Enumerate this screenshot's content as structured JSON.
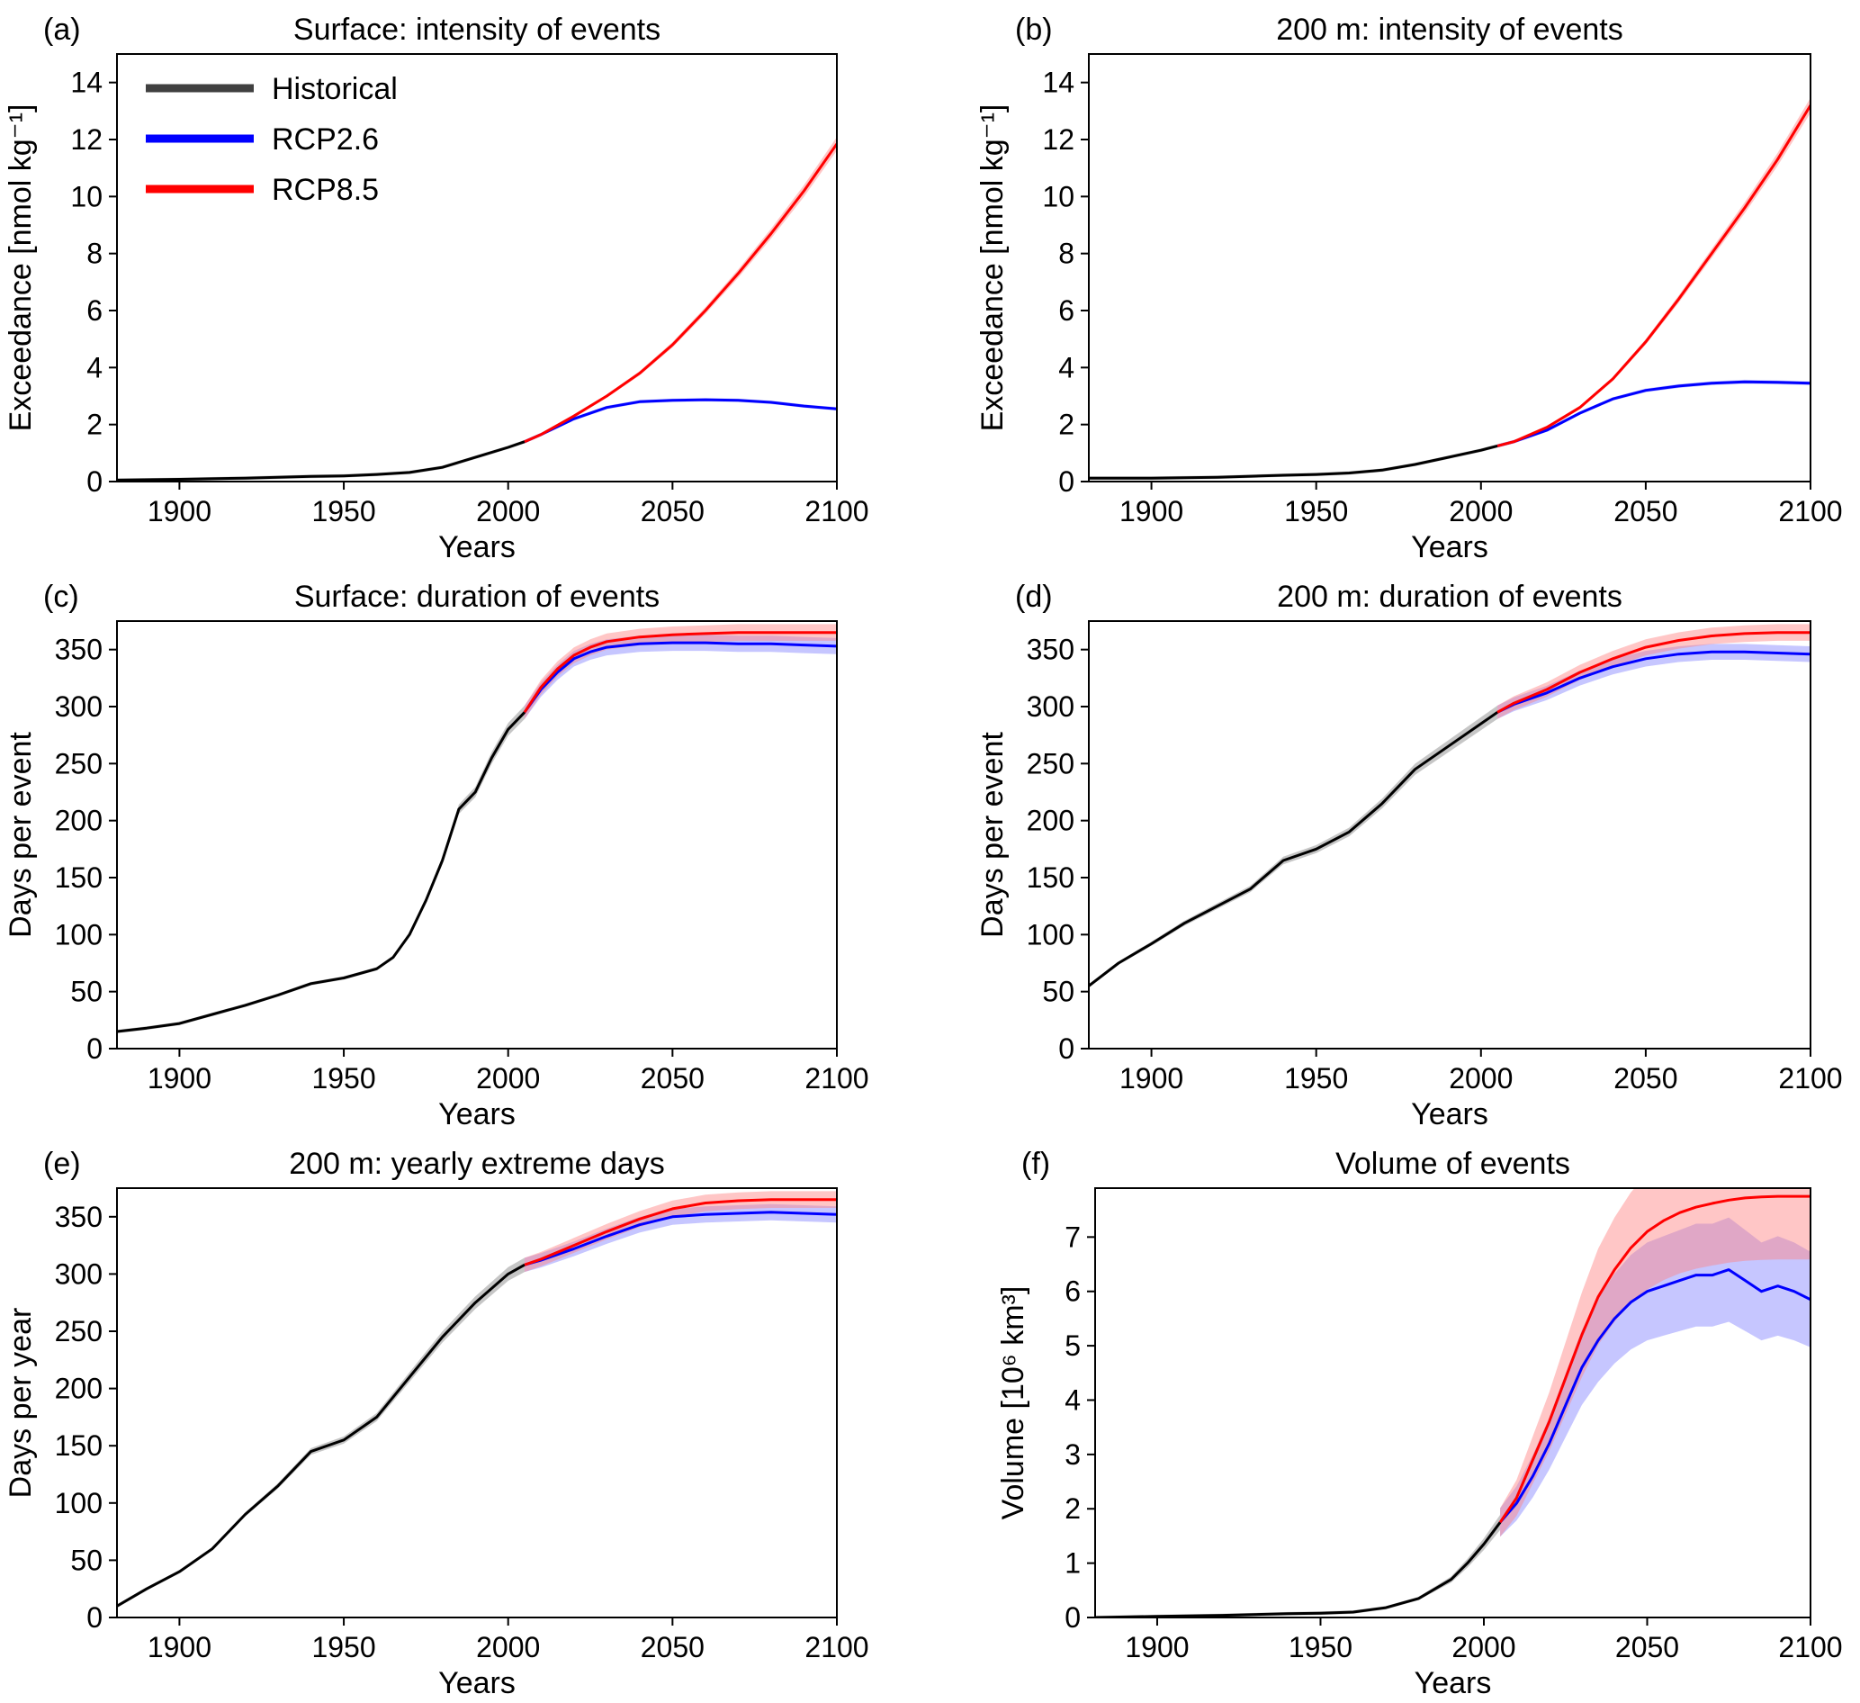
{
  "chart_data": [
    {
      "panel": "(a)",
      "type": "line",
      "title": "Surface: intensity of events",
      "xlabel": "Years",
      "ylabel": "Exceedance [nmol kg⁻¹]",
      "xlim": [
        1881,
        2100
      ],
      "ylim": [
        0,
        15
      ],
      "xticks": [
        1900,
        1950,
        2000,
        2050,
        2100
      ],
      "yticks": [
        0,
        2,
        4,
        6,
        8,
        10,
        12,
        14
      ],
      "legend": {
        "position": "top-left",
        "entries": [
          "Historical",
          "RCP2.6",
          "RCP8.5"
        ]
      },
      "series": [
        {
          "name": "Historical",
          "color": "#000000",
          "band": "#808080",
          "x": [
            1881,
            1900,
            1920,
            1940,
            1950,
            1960,
            1970,
            1980,
            1990,
            2000,
            2005
          ],
          "values": [
            0.05,
            0.08,
            0.12,
            0.18,
            0.2,
            0.25,
            0.32,
            0.5,
            0.85,
            1.2,
            1.4
          ]
        },
        {
          "name": "RCP2.6",
          "color": "#0000ff",
          "band": "#8080ff",
          "x": [
            2005,
            2010,
            2020,
            2030,
            2040,
            2050,
            2060,
            2070,
            2080,
            2090,
            2100
          ],
          "values": [
            1.4,
            1.65,
            2.2,
            2.6,
            2.8,
            2.85,
            2.87,
            2.85,
            2.78,
            2.65,
            2.55
          ]
        },
        {
          "name": "RCP8.5",
          "color": "#ff0000",
          "band": "#ff8080",
          "x": [
            2005,
            2010,
            2020,
            2030,
            2040,
            2050,
            2060,
            2070,
            2080,
            2090,
            2100
          ],
          "values": [
            1.4,
            1.65,
            2.3,
            3.0,
            3.8,
            4.8,
            6.0,
            7.3,
            8.7,
            10.2,
            11.85
          ]
        }
      ]
    },
    {
      "panel": "(b)",
      "type": "line",
      "title": "200 m: intensity of events",
      "xlabel": "Years",
      "ylabel": "Exceedance [nmol kg⁻¹]",
      "xlim": [
        1881,
        2100
      ],
      "ylim": [
        0,
        15
      ],
      "xticks": [
        1900,
        1950,
        2000,
        2050,
        2100
      ],
      "yticks": [
        0,
        2,
        4,
        6,
        8,
        10,
        12,
        14
      ],
      "series": [
        {
          "name": "Historical",
          "color": "#000000",
          "band": "#808080",
          "x": [
            1881,
            1900,
            1920,
            1940,
            1950,
            1960,
            1970,
            1980,
            1990,
            2000,
            2005
          ],
          "values": [
            0.12,
            0.12,
            0.15,
            0.22,
            0.25,
            0.3,
            0.4,
            0.6,
            0.85,
            1.1,
            1.25
          ]
        },
        {
          "name": "RCP2.6",
          "color": "#0000ff",
          "band": "#8080ff",
          "x": [
            2005,
            2010,
            2020,
            2030,
            2040,
            2050,
            2060,
            2070,
            2080,
            2090,
            2100
          ],
          "values": [
            1.25,
            1.4,
            1.8,
            2.4,
            2.9,
            3.2,
            3.35,
            3.45,
            3.5,
            3.48,
            3.45
          ]
        },
        {
          "name": "RCP8.5",
          "color": "#ff0000",
          "band": "#ff8080",
          "x": [
            2005,
            2010,
            2020,
            2030,
            2040,
            2050,
            2060,
            2070,
            2080,
            2090,
            2100
          ],
          "values": [
            1.25,
            1.4,
            1.9,
            2.6,
            3.6,
            4.9,
            6.4,
            8.0,
            9.6,
            11.3,
            13.2
          ]
        }
      ]
    },
    {
      "panel": "(c)",
      "type": "line",
      "title": "Surface: duration of events",
      "xlabel": "Years",
      "ylabel": "Days per event",
      "xlim": [
        1881,
        2100
      ],
      "ylim": [
        0,
        375
      ],
      "xticks": [
        1900,
        1950,
        2000,
        2050,
        2100
      ],
      "yticks": [
        0,
        50,
        100,
        150,
        200,
        250,
        300,
        350
      ],
      "series": [
        {
          "name": "Historical",
          "color": "#000000",
          "band": "#808080",
          "x": [
            1881,
            1890,
            1900,
            1910,
            1920,
            1930,
            1940,
            1950,
            1960,
            1965,
            1970,
            1975,
            1980,
            1985,
            1990,
            1995,
            2000,
            2005
          ],
          "values": [
            15,
            18,
            22,
            30,
            38,
            47,
            57,
            62,
            70,
            80,
            100,
            130,
            165,
            210,
            225,
            255,
            280,
            295
          ]
        },
        {
          "name": "RCP2.6",
          "color": "#0000ff",
          "band": "#8080ff",
          "x": [
            2005,
            2010,
            2015,
            2020,
            2025,
            2030,
            2040,
            2050,
            2060,
            2070,
            2080,
            2090,
            2100
          ],
          "values": [
            295,
            315,
            330,
            342,
            348,
            352,
            355,
            356,
            356,
            355,
            355,
            354,
            353
          ]
        },
        {
          "name": "RCP8.5",
          "color": "#ff0000",
          "band": "#ff8080",
          "x": [
            2005,
            2010,
            2015,
            2020,
            2025,
            2030,
            2040,
            2050,
            2060,
            2070,
            2080,
            2090,
            2100
          ],
          "values": [
            295,
            317,
            333,
            345,
            352,
            357,
            361,
            363,
            364,
            365,
            365,
            365,
            365
          ]
        }
      ]
    },
    {
      "panel": "(d)",
      "type": "line",
      "title": "200 m: duration of events",
      "xlabel": "Years",
      "ylabel": "Days per event",
      "xlim": [
        1881,
        2100
      ],
      "ylim": [
        0,
        375
      ],
      "xticks": [
        1900,
        1950,
        2000,
        2050,
        2100
      ],
      "yticks": [
        0,
        50,
        100,
        150,
        200,
        250,
        300,
        350
      ],
      "series": [
        {
          "name": "Historical",
          "color": "#000000",
          "band": "#808080",
          "x": [
            1881,
            1890,
            1900,
            1910,
            1920,
            1930,
            1940,
            1950,
            1960,
            1970,
            1980,
            1990,
            2000,
            2005
          ],
          "values": [
            55,
            75,
            92,
            110,
            125,
            140,
            165,
            175,
            190,
            215,
            245,
            265,
            285,
            295
          ]
        },
        {
          "name": "RCP2.6",
          "color": "#0000ff",
          "band": "#8080ff",
          "x": [
            2005,
            2010,
            2020,
            2030,
            2040,
            2050,
            2060,
            2070,
            2080,
            2090,
            2100
          ],
          "values": [
            295,
            302,
            312,
            325,
            335,
            342,
            346,
            348,
            348,
            347,
            346
          ]
        },
        {
          "name": "RCP8.5",
          "color": "#ff0000",
          "band": "#ff8080",
          "x": [
            2005,
            2010,
            2020,
            2030,
            2040,
            2050,
            2060,
            2070,
            2080,
            2090,
            2100
          ],
          "values": [
            295,
            303,
            315,
            330,
            342,
            352,
            358,
            362,
            364,
            365,
            365
          ]
        }
      ]
    },
    {
      "panel": "(e)",
      "type": "line",
      "title": "200 m: yearly extreme days",
      "xlabel": "Years",
      "ylabel": "Days per year",
      "xlim": [
        1881,
        2100
      ],
      "ylim": [
        0,
        375
      ],
      "xticks": [
        1900,
        1950,
        2000,
        2050,
        2100
      ],
      "yticks": [
        0,
        50,
        100,
        150,
        200,
        250,
        300,
        350
      ],
      "series": [
        {
          "name": "Historical",
          "color": "#000000",
          "band": "#808080",
          "x": [
            1881,
            1890,
            1900,
            1910,
            1920,
            1930,
            1940,
            1950,
            1960,
            1970,
            1980,
            1990,
            2000,
            2005
          ],
          "values": [
            10,
            25,
            40,
            60,
            90,
            115,
            145,
            155,
            175,
            210,
            245,
            275,
            300,
            308
          ]
        },
        {
          "name": "RCP2.6",
          "color": "#0000ff",
          "band": "#8080ff",
          "x": [
            2005,
            2010,
            2020,
            2030,
            2040,
            2050,
            2060,
            2070,
            2080,
            2090,
            2100
          ],
          "values": [
            308,
            312,
            322,
            333,
            343,
            350,
            352,
            353,
            354,
            353,
            352
          ]
        },
        {
          "name": "RCP8.5",
          "color": "#ff0000",
          "band": "#ff8080",
          "x": [
            2005,
            2010,
            2020,
            2030,
            2040,
            2050,
            2060,
            2070,
            2080,
            2090,
            2100
          ],
          "values": [
            308,
            313,
            325,
            337,
            348,
            357,
            362,
            364,
            365,
            365,
            365
          ]
        }
      ]
    },
    {
      "panel": "(f)",
      "type": "line",
      "title": "Volume of events",
      "xlabel": "Years",
      "ylabel": "Volume [10⁶ km³]",
      "xlim": [
        1881,
        2100
      ],
      "ylim": [
        0,
        7.9
      ],
      "xticks": [
        1900,
        1950,
        2000,
        2050,
        2100
      ],
      "yticks": [
        0,
        1,
        2,
        3,
        4,
        5,
        6,
        7
      ],
      "series": [
        {
          "name": "Historical",
          "color": "#000000",
          "band": "#808080",
          "x": [
            1881,
            1900,
            1920,
            1940,
            1950,
            1960,
            1970,
            1980,
            1990,
            1995,
            2000,
            2005
          ],
          "values": [
            0.0,
            0.02,
            0.04,
            0.07,
            0.08,
            0.1,
            0.18,
            0.35,
            0.7,
            1.0,
            1.35,
            1.75
          ]
        },
        {
          "name": "RCP2.6",
          "color": "#0000ff",
          "band": "#8080ff",
          "x": [
            2005,
            2010,
            2015,
            2020,
            2025,
            2030,
            2035,
            2040,
            2045,
            2050,
            2055,
            2060,
            2065,
            2070,
            2075,
            2080,
            2085,
            2090,
            2095,
            2100
          ],
          "values": [
            1.75,
            2.1,
            2.6,
            3.2,
            3.9,
            4.6,
            5.1,
            5.5,
            5.8,
            6.0,
            6.1,
            6.2,
            6.3,
            6.3,
            6.4,
            6.2,
            6.0,
            6.1,
            6.0,
            5.85
          ]
        },
        {
          "name": "RCP8.5",
          "color": "#ff0000",
          "band": "#ff8080",
          "x": [
            2005,
            2010,
            2015,
            2020,
            2025,
            2030,
            2035,
            2040,
            2045,
            2050,
            2055,
            2060,
            2065,
            2070,
            2075,
            2080,
            2085,
            2090,
            2095,
            2100
          ],
          "values": [
            1.75,
            2.2,
            2.9,
            3.6,
            4.4,
            5.2,
            5.9,
            6.4,
            6.8,
            7.1,
            7.3,
            7.45,
            7.55,
            7.62,
            7.68,
            7.72,
            7.74,
            7.75,
            7.75,
            7.75
          ]
        }
      ]
    }
  ]
}
